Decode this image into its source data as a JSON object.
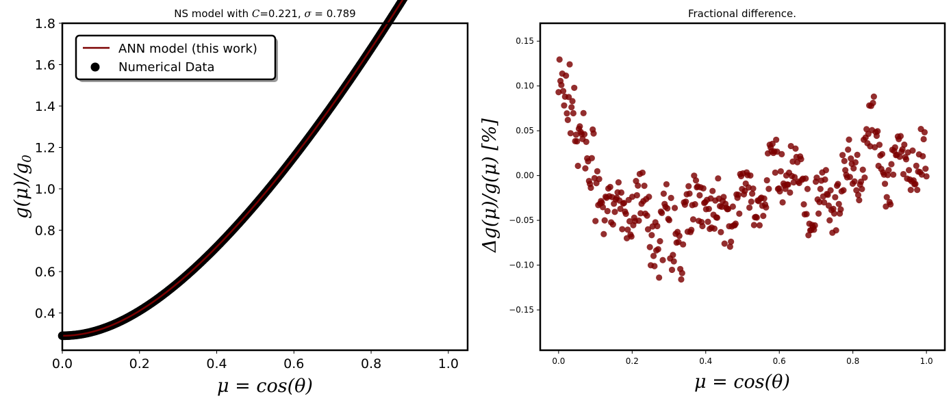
{
  "chart_data": [
    {
      "type": "line+scatter",
      "title": "NS model with C=0.221, σ = 0.789",
      "xlabel": "μ = cos(θ)",
      "ylabel": "g(μ)/g₀",
      "xlim": [
        0.0,
        1.05
      ],
      "ylim": [
        0.22,
        1.8
      ],
      "xticks": [
        "0.0",
        "0.2",
        "0.4",
        "0.6",
        "0.8",
        "1.0"
      ],
      "yticks": [
        "0.4",
        "0.6",
        "0.8",
        "1.0",
        "1.2",
        "1.4",
        "1.6",
        "1.8"
      ],
      "legend": {
        "placement": "upper-left",
        "entries": [
          "ANN model (this work)",
          "Numerical Data"
        ]
      },
      "model": {
        "g0": 0.29,
        "A": 2.22,
        "p": 1.45,
        "knee": 0.29,
        "note": ""
      },
      "x_range": [
        0.0,
        1.0
      ],
      "num_points": 400,
      "colors": {
        "line": "#7b0000",
        "points": "#000000"
      }
    },
    {
      "type": "scatter",
      "title": "Fractional difference.",
      "xlabel": "μ = cos(θ)",
      "ylabel": "Δg(μ)/g(μ)  [%]",
      "xlim": [
        -0.05,
        1.05
      ],
      "ylim": [
        -0.195,
        0.17
      ],
      "xticks": [
        "0.0",
        "0.2",
        "0.4",
        "0.6",
        "0.8",
        "1.0"
      ],
      "yticks": [
        "0.15",
        "0.10",
        "0.05",
        "0.00",
        "−0.05",
        "−0.10",
        "−0.15"
      ],
      "x_range": [
        0.0,
        1.0
      ],
      "num_points": 400,
      "color": "#7b0000",
      "envelope": [
        [
          0.0,
          0.09
        ],
        [
          0.05,
          0.07
        ],
        [
          0.1,
          -0.02
        ],
        [
          0.15,
          -0.04
        ],
        [
          0.2,
          -0.03
        ],
        [
          0.25,
          -0.05
        ],
        [
          0.3,
          -0.07
        ],
        [
          0.35,
          -0.06
        ],
        [
          0.4,
          -0.02
        ],
        [
          0.45,
          -0.06
        ],
        [
          0.5,
          -0.02
        ],
        [
          0.55,
          -0.03
        ],
        [
          0.6,
          0.02
        ],
        [
          0.65,
          -0.01
        ],
        [
          0.7,
          -0.03
        ],
        [
          0.75,
          -0.02
        ],
        [
          0.8,
          0.0
        ],
        [
          0.85,
          0.05
        ],
        [
          0.9,
          0.0
        ],
        [
          0.95,
          0.02
        ],
        [
          1.0,
          0.01
        ]
      ]
    }
  ]
}
